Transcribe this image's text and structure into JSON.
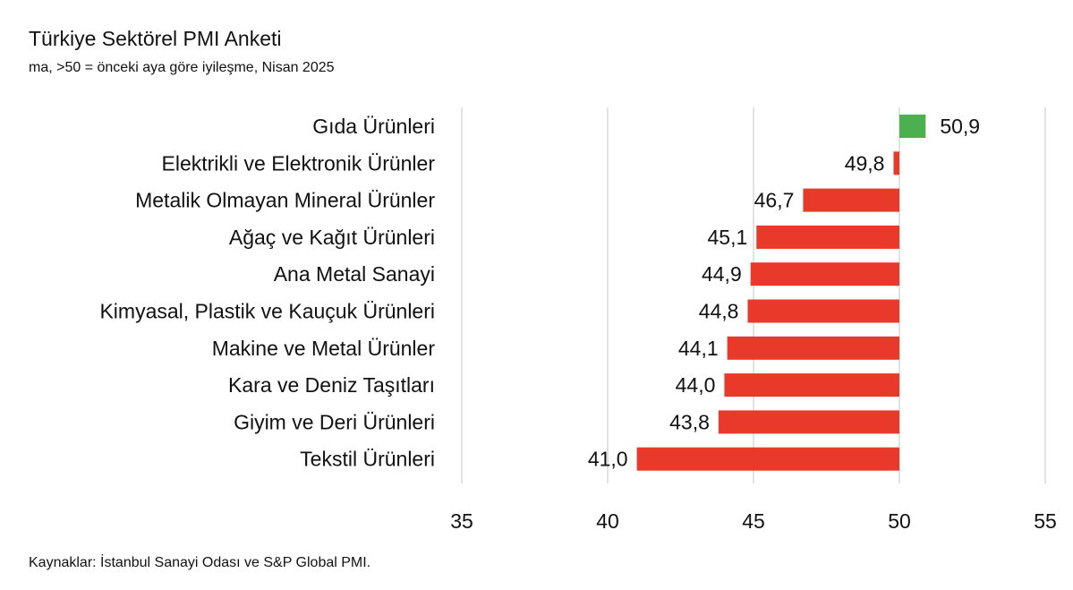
{
  "header": {
    "title": "Türkiye Sektörel PMI Anketi",
    "subtitle": "ma, >50 = önceki aya göre iyileşme, Nisan 2025"
  },
  "footer": {
    "source": "Kaynaklar: İstanbul Sanayi Odası ve S&P Global PMI."
  },
  "chart_data": {
    "type": "bar",
    "orientation": "horizontal",
    "title": "Türkiye Sektörel PMI Anketi",
    "subtitle": "ma, >50 = önceki aya göre iyileşme, Nisan 2025",
    "baseline": 50,
    "categories": [
      "Gıda Ürünleri",
      "Elektrikli ve Elektronik Ürünler",
      "Metalik Olmayan Mineral Ürünler",
      "Ağaç ve Kağıt Ürünleri",
      "Ana Metal Sanayi",
      "Kimyasal, Plastik ve Kauçuk Ürünleri",
      "Makine ve Metal Ürünler",
      "Kara ve Deniz Taşıtları",
      "Giyim ve Deri Ürünleri",
      "Tekstil Ürünleri"
    ],
    "values": [
      50.9,
      49.8,
      46.7,
      45.1,
      44.9,
      44.8,
      44.1,
      44.0,
      43.8,
      41.0
    ],
    "value_labels": [
      "50,9",
      "49,8",
      "46,7",
      "45,1",
      "44,9",
      "44,8",
      "44,1",
      "44,0",
      "43,8",
      "41,0"
    ],
    "xlim": [
      35,
      55
    ],
    "xticks": [
      35,
      40,
      45,
      50,
      55
    ],
    "xtick_labels": [
      "35",
      "40",
      "45",
      "50",
      "55"
    ],
    "grid": true,
    "colors": {
      "above_50": "#4caf50",
      "below_50": "#e8392b",
      "grid": "#d9d9d9"
    }
  }
}
